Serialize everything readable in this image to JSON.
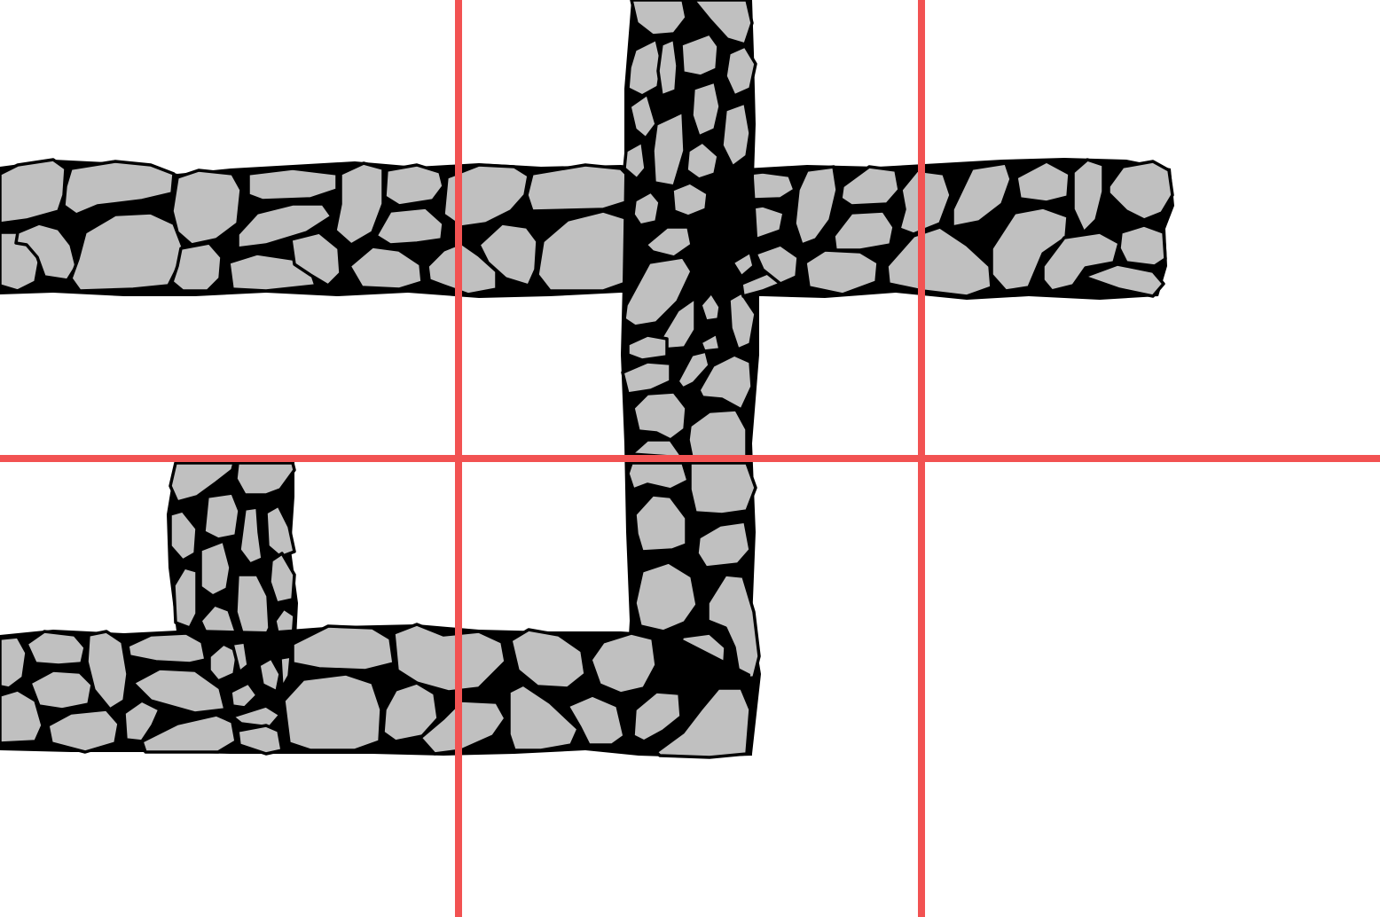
{
  "scene": {
    "background_color": "#ffffff",
    "stone_fill": "#c0c0c0",
    "mortar_color": "#000000",
    "stone_outline": "#000000",
    "grid_color": "#f25252",
    "grid": {
      "columns": 3,
      "rows": 2
    },
    "map_tiles": [
      {
        "kind": "wall-horizontal",
        "name": "top-wall",
        "start": "left-edge",
        "end": "right-of-column-3-start"
      },
      {
        "kind": "wall-vertical",
        "name": "central-pillar",
        "start": "top-edge",
        "end": "lower-half"
      },
      {
        "kind": "wall-vertical",
        "name": "short-pillar",
        "start": "row-2-top",
        "end": "bottom-wall"
      },
      {
        "kind": "wall-horizontal",
        "name": "bottom-wall",
        "start": "left-edge",
        "end": "central-pillar"
      }
    ]
  }
}
